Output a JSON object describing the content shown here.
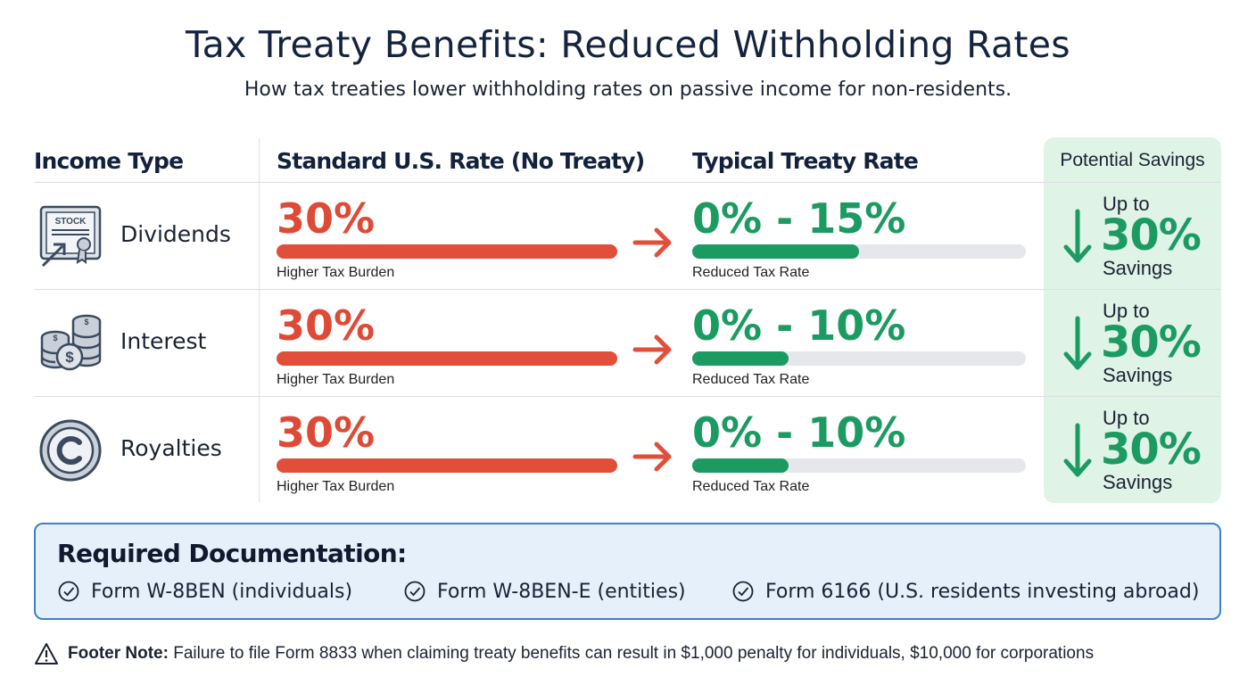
{
  "title": "Tax Treaty Benefits: Reduced Withholding Rates",
  "subtitle": "How tax treaties lower withholding rates on passive income for non-residents.",
  "columns": {
    "income_type": "Income Type",
    "standard": "Standard U.S. Rate (No Treaty)",
    "treaty": "Typical Treaty Rate",
    "savings": "Potential Savings"
  },
  "colors": {
    "red": "#e14f3a",
    "green": "#1b9a62",
    "savings_bg": "#dff3e6",
    "doc_border": "#3d82c4"
  },
  "rows": [
    {
      "icon": "stock-certificate-icon",
      "name": "Dividends",
      "standard_rate": "30%",
      "standard_fill": 1.0,
      "standard_label": "Higher Tax Burden",
      "treaty_rate": "0% - 15%",
      "treaty_fill": 0.5,
      "treaty_label": "Reduced Tax Rate",
      "savings_prefix": "Up to",
      "savings_value": "30%",
      "savings_suffix": "Savings"
    },
    {
      "icon": "coin-stack-icon",
      "name": "Interest",
      "standard_rate": "30%",
      "standard_fill": 1.0,
      "standard_label": "Higher Tax Burden",
      "treaty_rate": "0% - 10%",
      "treaty_fill": 0.29,
      "treaty_label": "Reduced Tax Rate",
      "savings_prefix": "Up to",
      "savings_value": "30%",
      "savings_suffix": "Savings"
    },
    {
      "icon": "copyright-icon",
      "name": "Royalties",
      "standard_rate": "30%",
      "standard_fill": 1.0,
      "standard_label": "Higher Tax Burden",
      "treaty_rate": "0% - 10%",
      "treaty_fill": 0.29,
      "treaty_label": "Reduced Tax Rate",
      "savings_prefix": "Up to",
      "savings_value": "30%",
      "savings_suffix": "Savings"
    }
  ],
  "documentation": {
    "title": "Required Documentation:",
    "items": [
      "Form W-8BEN (individuals)",
      "Form W-8BEN-E (entities)",
      "Form 6166 (U.S. residents investing abroad)"
    ]
  },
  "footer": {
    "label": "Footer Note:",
    "text": "Failure to file Form 8833 when claiming treaty benefits can result in $1,000 penalty for individuals, $10,000 for corporations"
  }
}
